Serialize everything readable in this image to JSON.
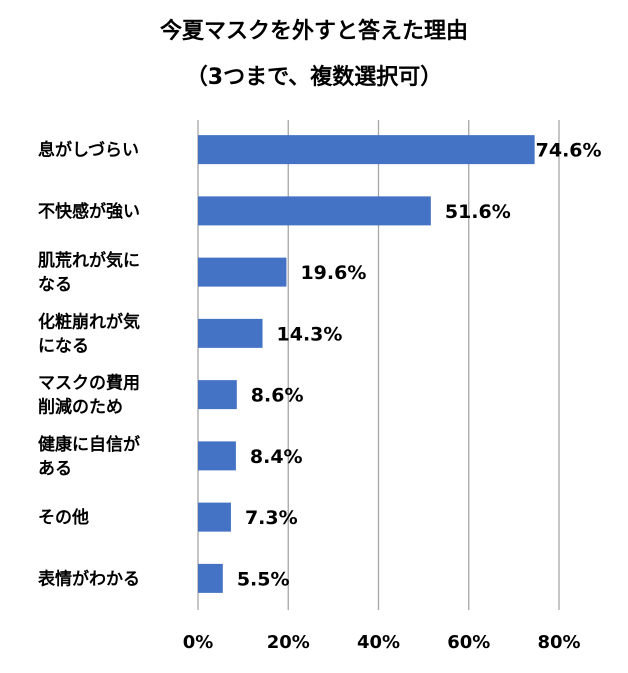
{
  "chart_data": {
    "type": "bar",
    "orientation": "horizontal",
    "title": [
      "今夏マスクを外すと答えた理由",
      "（3つまで、複数選択可）"
    ],
    "categories": [
      [
        "息がしづらい"
      ],
      [
        "不快感が強い"
      ],
      [
        "肌荒れが気に",
        "なる"
      ],
      [
        "化粧崩れが気",
        "になる"
      ],
      [
        "マスクの費用",
        "削減のため"
      ],
      [
        "健康に自信が",
        "ある"
      ],
      [
        "その他"
      ],
      [
        "表情がわかる"
      ]
    ],
    "values": [
      74.6,
      51.6,
      19.6,
      14.3,
      8.6,
      8.4,
      7.3,
      5.5
    ],
    "data_labels": [
      "74.6%",
      "51.6%",
      "19.6%",
      "14.3%",
      "8.6%",
      "8.4%",
      "7.3%",
      "5.5%"
    ],
    "xlim": [
      0,
      80
    ],
    "xticks": [
      0,
      20,
      40,
      60,
      80
    ],
    "xtick_labels": [
      "0%",
      "20%",
      "40%",
      "60%",
      "80%"
    ],
    "grid": true,
    "legend": "none",
    "bar_color": "#4472C4",
    "grid_color": "#A6A6A6"
  }
}
